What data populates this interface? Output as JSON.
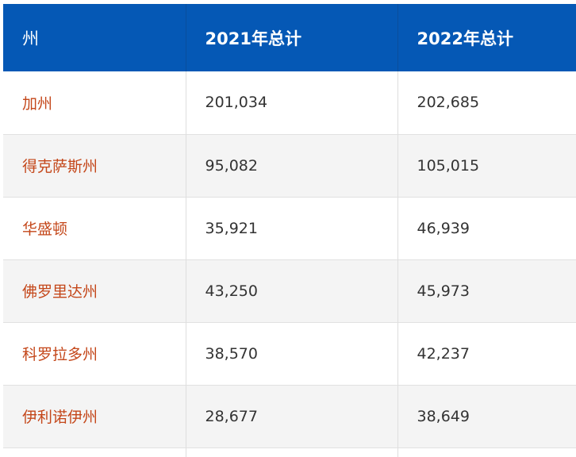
{
  "table": {
    "headers": [
      "州",
      "2021年总计",
      "2022年总计"
    ],
    "rows": [
      {
        "state": "加州",
        "y2021": "201,034",
        "y2022": "202,685"
      },
      {
        "state": "得克萨斯州",
        "y2021": "95,082",
        "y2022": "105,015"
      },
      {
        "state": "华盛顿",
        "y2021": "35,921",
        "y2022": "46,939"
      },
      {
        "state": "佛罗里达州",
        "y2021": "43,250",
        "y2022": "45,973"
      },
      {
        "state": "科罗拉多州",
        "y2021": "38,570",
        "y2022": "42,237"
      },
      {
        "state": "伊利诺伊州",
        "y2021": "28,677",
        "y2022": "38,649"
      }
    ]
  },
  "colors": {
    "header_bg": "#0558b5",
    "state_text": "#c4471a",
    "alt_row_bg": "#f4f4f4"
  }
}
